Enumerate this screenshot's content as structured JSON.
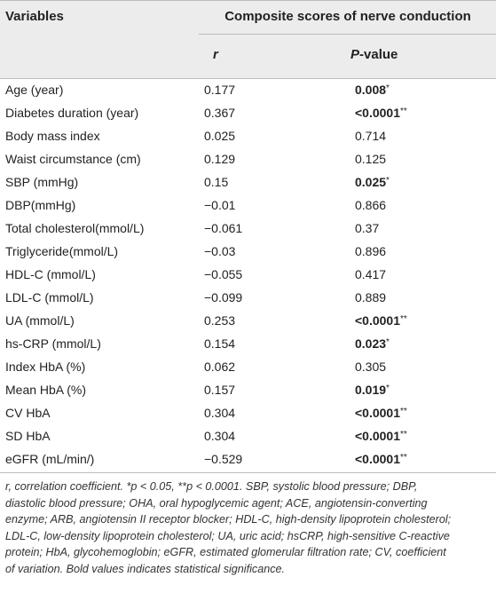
{
  "header": {
    "variables": "Variables",
    "group": "Composite scores of nerve conduction",
    "r": "r",
    "p_italic": "P",
    "p_rest": "-value"
  },
  "rows": [
    {
      "variable": "Age (year)",
      "r": "0.177",
      "p": "0.008",
      "sig": "*",
      "bold": true
    },
    {
      "variable": "Diabetes duration (year)",
      "r": "0.367",
      "p": "<0.0001",
      "sig": "**",
      "bold": true
    },
    {
      "variable": "Body mass index",
      "r": "0.025",
      "p": "0.714",
      "sig": "",
      "bold": false
    },
    {
      "variable": "Waist circumstance (cm)",
      "r": "0.129",
      "p": "0.125",
      "sig": "",
      "bold": false
    },
    {
      "variable": "SBP (mmHg)",
      "r": "0.15",
      "p": "0.025",
      "sig": "*",
      "bold": true
    },
    {
      "variable": "DBP(mmHg)",
      "r": "−0.01",
      "p": "0.866",
      "sig": "",
      "bold": false
    },
    {
      "variable": "Total cholesterol(mmol/L)",
      "r": "−0.061",
      "p": "0.37",
      "sig": "",
      "bold": false
    },
    {
      "variable": "Triglyceride(mmol/L)",
      "r": "−0.03",
      "p": "0.896",
      "sig": "",
      "bold": false
    },
    {
      "variable": "HDL-C (mmol/L)",
      "r": "−0.055",
      "p": "0.417",
      "sig": "",
      "bold": false
    },
    {
      "variable": "LDL-C (mmol/L)",
      "r": "−0.099",
      "p": "0.889",
      "sig": "",
      "bold": false
    },
    {
      "variable": "UA (mmol/L)",
      "r": "0.253",
      "p": "<0.0001",
      "sig": "**",
      "bold": true
    },
    {
      "variable": "hs-CRP (mmol/L)",
      "r": "0.154",
      "p": "0.023",
      "sig": "*",
      "bold": true
    },
    {
      "variable": "Index HbA (%)",
      "r": "0.062",
      "p": "0.305",
      "sig": "",
      "bold": false
    },
    {
      "variable": "Mean HbA (%)",
      "r": "0.157",
      "p": "0.019",
      "sig": "*",
      "bold": true
    },
    {
      "variable": "CV HbA",
      "r": "0.304",
      "p": "<0.0001",
      "sig": "**",
      "bold": true
    },
    {
      "variable": "SD HbA",
      "r": "0.304",
      "p": "<0.0001",
      "sig": "**",
      "bold": true
    },
    {
      "variable": "eGFR (mL/min/)",
      "r": "−0.529",
      "p": "<0.0001",
      "sig": "**",
      "bold": true
    }
  ],
  "footnote_lines": [
    "r, correlation coefficient. *p < 0.05, **p < 0.0001. SBP, systolic blood pressure; DBP,",
    "diastolic blood pressure; OHA, oral hypoglycemic agent; ACE, angiotensin-converting",
    "enzyme; ARB, angiotensin II receptor blocker; HDL-C, high-density lipoprotein cholesterol;",
    "LDL-C, low-density lipoprotein cholesterol; UA, uric acid; hsCRP, high-sensitive C-reactive",
    "protein; HbA, glycohemoglobin; eGFR, estimated glomerular filtration rate; CV, coefficient",
    "of variation. Bold values indicates statistical significance."
  ]
}
